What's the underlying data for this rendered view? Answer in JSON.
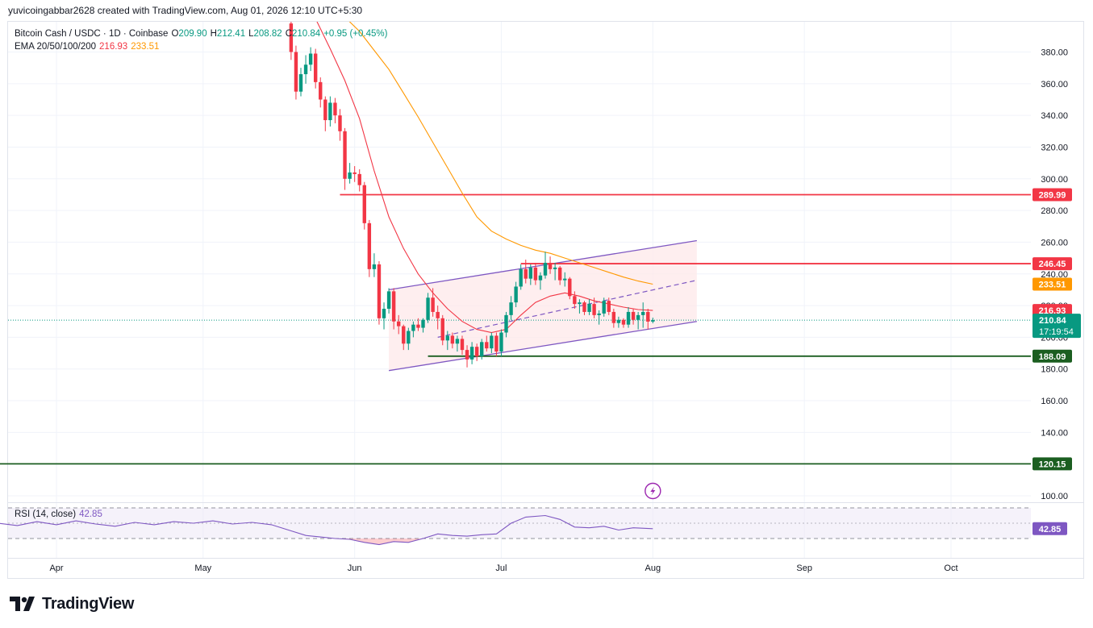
{
  "header": {
    "attribution": "yuvicoingabbar2628 created with TradingView.com, Aug 01, 2026 12:10 UTC+5:30"
  },
  "legend": {
    "symbol": "Bitcoin Cash / USDC · 1D · Coinbase",
    "o_label": "O",
    "o_value": "209.90",
    "h_label": "H",
    "h_value": "212.41",
    "l_label": "L",
    "l_value": "208.82",
    "c_label": "C",
    "c_value": "210.84",
    "change": "+0.95 (+0.45%)",
    "ema_label": "EMA 20/50/100/200",
    "ema20_value": "216.93",
    "ema50_value": "233.51",
    "rsi_label": "RSI (14, close)",
    "rsi_value": "42.85"
  },
  "colors": {
    "up": "#089981",
    "down": "#f23645",
    "ema20": "#f23645",
    "ema50": "#ff9800",
    "channel": "#7e57c2",
    "channel_fill": "#fde8ea",
    "resistance": "#f23645",
    "support": "#1b5e20",
    "rsi": "#7e57c2",
    "price_badge": "#089981",
    "rsi_badge": "#7e57c2",
    "grid": "#f0f3fa"
  },
  "price_badge": {
    "price": "210.84",
    "countdown": "17:19:54"
  },
  "horizontal_levels": [
    {
      "value": 289.99,
      "label": "289.99",
      "color": "#f23645",
      "start": "2026-05-29"
    },
    {
      "value": 246.45,
      "label": "246.45",
      "color": "#f23645",
      "start": "2026-07-05"
    },
    {
      "value": 188.09,
      "label": "188.09",
      "color": "#1b5e20",
      "start": "2026-06-16"
    },
    {
      "value": 120.15,
      "label": "120.15",
      "color": "#1b5e20",
      "start": "2026-03-20"
    }
  ],
  "ema_badges": [
    {
      "value": 233.51,
      "label": "233.51",
      "color": "#ff9800"
    },
    {
      "value": 216.93,
      "label": "216.93",
      "color": "#f23645"
    }
  ],
  "channel": {
    "upper": [
      [
        "2026-06-08",
        230
      ],
      [
        "2026-08-10",
        261
      ]
    ],
    "lower": [
      [
        "2026-06-08",
        179
      ],
      [
        "2026-08-10",
        210
      ]
    ],
    "mid": [
      [
        "2026-06-18",
        200
      ],
      [
        "2026-08-10",
        236
      ]
    ]
  },
  "time_axis": {
    "labels": [
      {
        "date": "2026-04-01",
        "text": "Apr"
      },
      {
        "date": "2026-05-01",
        "text": "May"
      },
      {
        "date": "2026-06-01",
        "text": "Jun"
      },
      {
        "date": "2026-07-01",
        "text": "Jul"
      },
      {
        "date": "2026-08-01",
        "text": "Aug"
      },
      {
        "date": "2026-09-01",
        "text": "Sep"
      },
      {
        "date": "2026-10-01",
        "text": "Oct"
      }
    ]
  },
  "rsi_levels": {
    "upper": 70,
    "middle": 50,
    "lower": 30
  },
  "lightning_icon": "lightning-icon",
  "footer": {
    "brand": "TradingView",
    "logo_icon": "tradingview-logo-icon"
  },
  "chart_data": {
    "type": "candlestick",
    "title": "Bitcoin Cash / USDC · 1D · Coinbase",
    "ylim": [
      95,
      400
    ],
    "y_ticks": [
      100,
      120,
      140,
      160,
      180,
      200,
      220,
      240,
      260,
      280,
      300,
      320,
      340,
      360,
      380
    ],
    "x_range": [
      "2026-03-20",
      "2026-10-25"
    ],
    "candles": [
      {
        "date": "2026-05-19",
        "o": 398,
        "h": 402,
        "l": 375,
        "c": 380
      },
      {
        "date": "2026-05-20",
        "o": 380,
        "h": 384,
        "l": 350,
        "c": 355
      },
      {
        "date": "2026-05-21",
        "o": 355,
        "h": 370,
        "l": 352,
        "c": 366
      },
      {
        "date": "2026-05-22",
        "o": 366,
        "h": 378,
        "l": 360,
        "c": 372
      },
      {
        "date": "2026-05-23",
        "o": 372,
        "h": 383,
        "l": 368,
        "c": 379
      },
      {
        "date": "2026-05-24",
        "o": 379,
        "h": 382,
        "l": 357,
        "c": 361
      },
      {
        "date": "2026-05-25",
        "o": 361,
        "h": 364,
        "l": 345,
        "c": 350
      },
      {
        "date": "2026-05-26",
        "o": 350,
        "h": 352,
        "l": 330,
        "c": 337
      },
      {
        "date": "2026-05-27",
        "o": 337,
        "h": 352,
        "l": 333,
        "c": 348
      },
      {
        "date": "2026-05-28",
        "o": 348,
        "h": 351,
        "l": 335,
        "c": 340
      },
      {
        "date": "2026-05-29",
        "o": 340,
        "h": 344,
        "l": 324,
        "c": 330
      },
      {
        "date": "2026-05-30",
        "o": 330,
        "h": 332,
        "l": 293,
        "c": 300
      },
      {
        "date": "2026-05-31",
        "o": 300,
        "h": 310,
        "l": 297,
        "c": 304
      },
      {
        "date": "2026-06-01",
        "o": 304,
        "h": 308,
        "l": 298,
        "c": 303
      },
      {
        "date": "2026-06-02",
        "o": 303,
        "h": 306,
        "l": 292,
        "c": 296
      },
      {
        "date": "2026-06-03",
        "o": 296,
        "h": 298,
        "l": 268,
        "c": 272
      },
      {
        "date": "2026-06-04",
        "o": 272,
        "h": 274,
        "l": 238,
        "c": 243
      },
      {
        "date": "2026-06-05",
        "o": 243,
        "h": 253,
        "l": 238,
        "c": 246
      },
      {
        "date": "2026-06-06",
        "o": 246,
        "h": 248,
        "l": 208,
        "c": 212
      },
      {
        "date": "2026-06-07",
        "o": 212,
        "h": 222,
        "l": 205,
        "c": 218
      },
      {
        "date": "2026-06-08",
        "o": 218,
        "h": 231,
        "l": 215,
        "c": 229
      },
      {
        "date": "2026-06-09",
        "o": 229,
        "h": 231,
        "l": 205,
        "c": 210
      },
      {
        "date": "2026-06-10",
        "o": 210,
        "h": 214,
        "l": 202,
        "c": 207
      },
      {
        "date": "2026-06-11",
        "o": 207,
        "h": 208,
        "l": 192,
        "c": 196
      },
      {
        "date": "2026-06-12",
        "o": 196,
        "h": 206,
        "l": 192,
        "c": 204
      },
      {
        "date": "2026-06-13",
        "o": 204,
        "h": 210,
        "l": 200,
        "c": 208
      },
      {
        "date": "2026-06-14",
        "o": 208,
        "h": 212,
        "l": 204,
        "c": 206
      },
      {
        "date": "2026-06-15",
        "o": 206,
        "h": 212,
        "l": 203,
        "c": 211
      },
      {
        "date": "2026-06-16",
        "o": 211,
        "h": 228,
        "l": 209,
        "c": 225
      },
      {
        "date": "2026-06-17",
        "o": 225,
        "h": 231,
        "l": 213,
        "c": 216
      },
      {
        "date": "2026-06-18",
        "o": 216,
        "h": 220,
        "l": 205,
        "c": 212
      },
      {
        "date": "2026-06-19",
        "o": 212,
        "h": 214,
        "l": 195,
        "c": 198
      },
      {
        "date": "2026-06-20",
        "o": 198,
        "h": 204,
        "l": 192,
        "c": 201
      },
      {
        "date": "2026-06-21",
        "o": 201,
        "h": 203,
        "l": 193,
        "c": 196
      },
      {
        "date": "2026-06-22",
        "o": 196,
        "h": 201,
        "l": 191,
        "c": 199
      },
      {
        "date": "2026-06-23",
        "o": 199,
        "h": 201,
        "l": 189,
        "c": 192
      },
      {
        "date": "2026-06-24",
        "o": 192,
        "h": 195,
        "l": 181,
        "c": 186
      },
      {
        "date": "2026-06-25",
        "o": 186,
        "h": 197,
        "l": 183,
        "c": 194
      },
      {
        "date": "2026-06-26",
        "o": 194,
        "h": 196,
        "l": 185,
        "c": 188
      },
      {
        "date": "2026-06-27",
        "o": 188,
        "h": 199,
        "l": 186,
        "c": 197
      },
      {
        "date": "2026-06-28",
        "o": 197,
        "h": 201,
        "l": 191,
        "c": 193
      },
      {
        "date": "2026-06-29",
        "o": 193,
        "h": 203,
        "l": 190,
        "c": 201
      },
      {
        "date": "2026-06-30",
        "o": 201,
        "h": 203,
        "l": 188,
        "c": 191
      },
      {
        "date": "2026-07-01",
        "o": 191,
        "h": 205,
        "l": 188,
        "c": 203
      },
      {
        "date": "2026-07-02",
        "o": 203,
        "h": 216,
        "l": 200,
        "c": 214
      },
      {
        "date": "2026-07-03",
        "o": 214,
        "h": 226,
        "l": 211,
        "c": 222
      },
      {
        "date": "2026-07-04",
        "o": 222,
        "h": 235,
        "l": 219,
        "c": 232
      },
      {
        "date": "2026-07-05",
        "o": 232,
        "h": 246,
        "l": 230,
        "c": 243
      },
      {
        "date": "2026-07-06",
        "o": 243,
        "h": 249,
        "l": 234,
        "c": 237
      },
      {
        "date": "2026-07-07",
        "o": 237,
        "h": 246,
        "l": 233,
        "c": 244
      },
      {
        "date": "2026-07-08",
        "o": 244,
        "h": 247,
        "l": 233,
        "c": 236
      },
      {
        "date": "2026-07-09",
        "o": 236,
        "h": 241,
        "l": 230,
        "c": 239
      },
      {
        "date": "2026-07-10",
        "o": 239,
        "h": 254,
        "l": 237,
        "c": 247
      },
      {
        "date": "2026-07-11",
        "o": 247,
        "h": 251,
        "l": 240,
        "c": 243
      },
      {
        "date": "2026-07-12",
        "o": 243,
        "h": 247,
        "l": 236,
        "c": 244
      },
      {
        "date": "2026-07-13",
        "o": 244,
        "h": 245,
        "l": 233,
        "c": 236
      },
      {
        "date": "2026-07-14",
        "o": 236,
        "h": 241,
        "l": 232,
        "c": 237
      },
      {
        "date": "2026-07-15",
        "o": 237,
        "h": 238,
        "l": 224,
        "c": 226
      },
      {
        "date": "2026-07-16",
        "o": 226,
        "h": 229,
        "l": 218,
        "c": 221
      },
      {
        "date": "2026-07-17",
        "o": 221,
        "h": 224,
        "l": 215,
        "c": 222
      },
      {
        "date": "2026-07-18",
        "o": 222,
        "h": 223,
        "l": 214,
        "c": 216
      },
      {
        "date": "2026-07-19",
        "o": 216,
        "h": 224,
        "l": 214,
        "c": 221
      },
      {
        "date": "2026-07-20",
        "o": 221,
        "h": 225,
        "l": 212,
        "c": 214
      },
      {
        "date": "2026-07-21",
        "o": 214,
        "h": 217,
        "l": 208,
        "c": 215
      },
      {
        "date": "2026-07-22",
        "o": 215,
        "h": 225,
        "l": 213,
        "c": 223
      },
      {
        "date": "2026-07-23",
        "o": 223,
        "h": 225,
        "l": 214,
        "c": 216
      },
      {
        "date": "2026-07-24",
        "o": 216,
        "h": 218,
        "l": 206,
        "c": 209
      },
      {
        "date": "2026-07-25",
        "o": 209,
        "h": 213,
        "l": 206,
        "c": 211
      },
      {
        "date": "2026-07-26",
        "o": 211,
        "h": 212,
        "l": 206,
        "c": 208
      },
      {
        "date": "2026-07-27",
        "o": 208,
        "h": 219,
        "l": 206,
        "c": 216
      },
      {
        "date": "2026-07-28",
        "o": 216,
        "h": 218,
        "l": 208,
        "c": 211
      },
      {
        "date": "2026-07-29",
        "o": 211,
        "h": 216,
        "l": 205,
        "c": 214
      },
      {
        "date": "2026-07-30",
        "o": 214,
        "h": 222,
        "l": 206,
        "c": 216
      },
      {
        "date": "2026-07-31",
        "o": 216,
        "h": 218,
        "l": 205,
        "c": 209.9
      },
      {
        "date": "2026-08-01",
        "o": 209.9,
        "h": 212.41,
        "l": 208.82,
        "c": 210.84
      }
    ],
    "ema20": [
      [
        "2026-05-24",
        401
      ],
      [
        "2026-05-27",
        382
      ],
      [
        "2026-05-30",
        362
      ],
      [
        "2026-06-02",
        338
      ],
      [
        "2026-06-05",
        305
      ],
      [
        "2026-06-08",
        276
      ],
      [
        "2026-06-11",
        256
      ],
      [
        "2026-06-14",
        240
      ],
      [
        "2026-06-17",
        228
      ],
      [
        "2026-06-20",
        218
      ],
      [
        "2026-06-23",
        210
      ],
      [
        "2026-06-26",
        205
      ],
      [
        "2026-06-29",
        203
      ],
      [
        "2026-07-02",
        205
      ],
      [
        "2026-07-05",
        214
      ],
      [
        "2026-07-08",
        222
      ],
      [
        "2026-07-11",
        226
      ],
      [
        "2026-07-14",
        228
      ],
      [
        "2026-07-17",
        226
      ],
      [
        "2026-07-20",
        223
      ],
      [
        "2026-07-23",
        221
      ],
      [
        "2026-07-26",
        219
      ],
      [
        "2026-07-29",
        217.5
      ],
      [
        "2026-08-01",
        216.93
      ]
    ],
    "ema50": [
      [
        "2026-05-29",
        405
      ],
      [
        "2026-06-02",
        393
      ],
      [
        "2026-06-05",
        381
      ],
      [
        "2026-06-08",
        369
      ],
      [
        "2026-06-11",
        354
      ],
      [
        "2026-06-14",
        339
      ],
      [
        "2026-06-17",
        323
      ],
      [
        "2026-06-20",
        307
      ],
      [
        "2026-06-23",
        291
      ],
      [
        "2026-06-26",
        276
      ],
      [
        "2026-06-29",
        267
      ],
      [
        "2026-07-02",
        262
      ],
      [
        "2026-07-05",
        258
      ],
      [
        "2026-07-08",
        255
      ],
      [
        "2026-07-11",
        253
      ],
      [
        "2026-07-14",
        250
      ],
      [
        "2026-07-17",
        247
      ],
      [
        "2026-07-20",
        244
      ],
      [
        "2026-07-23",
        241
      ],
      [
        "2026-07-26",
        238
      ],
      [
        "2026-07-29",
        235.5
      ],
      [
        "2026-08-01",
        233.51
      ]
    ],
    "rsi": [
      [
        "2026-03-20",
        50
      ],
      [
        "2026-03-24",
        47
      ],
      [
        "2026-03-28",
        52
      ],
      [
        "2026-04-01",
        48
      ],
      [
        "2026-04-05",
        53
      ],
      [
        "2026-04-09",
        49
      ],
      [
        "2026-04-13",
        46
      ],
      [
        "2026-04-17",
        51
      ],
      [
        "2026-04-21",
        48
      ],
      [
        "2026-04-25",
        52
      ],
      [
        "2026-04-29",
        50
      ],
      [
        "2026-05-03",
        53
      ],
      [
        "2026-05-07",
        49
      ],
      [
        "2026-05-11",
        51
      ],
      [
        "2026-05-15",
        48
      ],
      [
        "2026-05-19",
        40
      ],
      [
        "2026-05-22",
        34
      ],
      [
        "2026-05-25",
        32
      ],
      [
        "2026-05-28",
        30
      ],
      [
        "2026-05-31",
        29
      ],
      [
        "2026-06-03",
        25
      ],
      [
        "2026-06-06",
        22
      ],
      [
        "2026-06-09",
        26
      ],
      [
        "2026-06-12",
        25
      ],
      [
        "2026-06-15",
        30
      ],
      [
        "2026-06-18",
        36
      ],
      [
        "2026-06-21",
        34
      ],
      [
        "2026-06-24",
        33
      ],
      [
        "2026-06-27",
        35
      ],
      [
        "2026-06-30",
        36
      ],
      [
        "2026-07-03",
        50
      ],
      [
        "2026-07-06",
        58
      ],
      [
        "2026-07-10",
        60
      ],
      [
        "2026-07-13",
        55
      ],
      [
        "2026-07-16",
        45
      ],
      [
        "2026-07-19",
        44
      ],
      [
        "2026-07-22",
        46
      ],
      [
        "2026-07-25",
        41
      ],
      [
        "2026-07-28",
        44
      ],
      [
        "2026-08-01",
        42.85
      ]
    ]
  }
}
